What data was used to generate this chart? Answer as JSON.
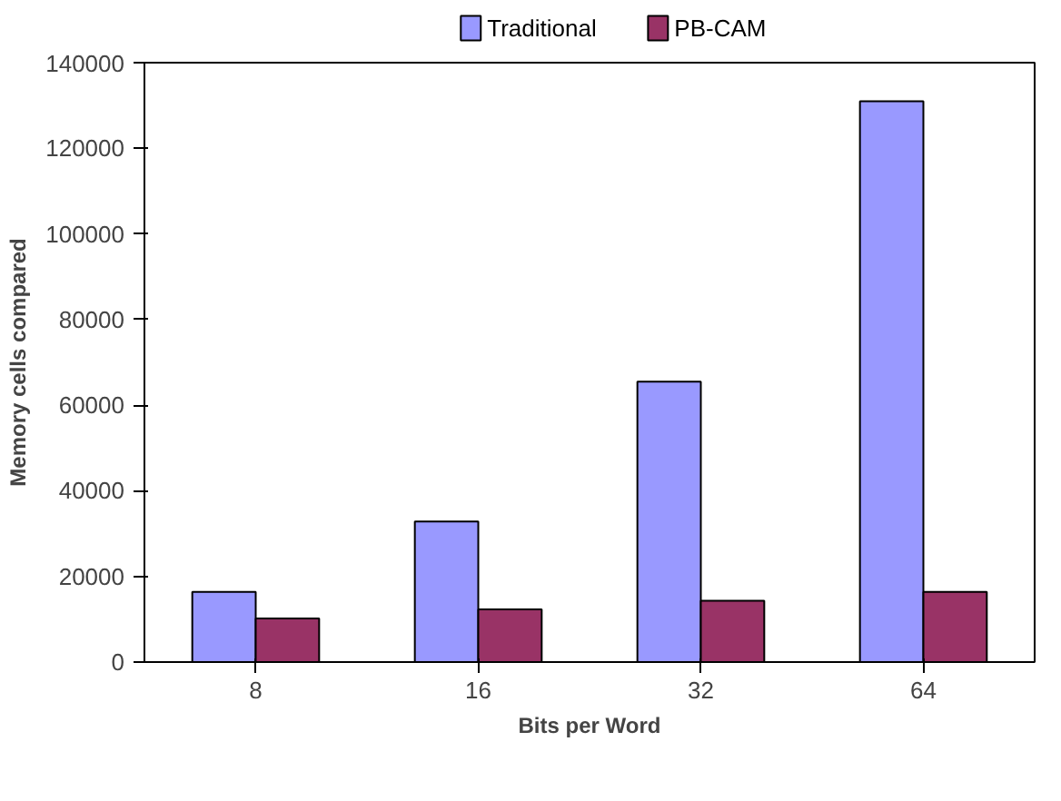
{
  "chart_data": {
    "type": "bar",
    "xlabel": "Bits per Word",
    "ylabel": "Memory cells compared",
    "categories": [
      "8",
      "16",
      "32",
      "64"
    ],
    "series": [
      {
        "name": "Traditional",
        "color": "#9999ff",
        "values": [
          16400,
          32800,
          65500,
          131000
        ]
      },
      {
        "name": "PB-CAM",
        "color": "#993366",
        "values": [
          10200,
          12300,
          14300,
          16400
        ]
      }
    ],
    "ylim": [
      0,
      140000
    ],
    "yticks": [
      0,
      20000,
      40000,
      60000,
      80000,
      100000,
      120000,
      140000
    ],
    "grid": false,
    "legend": "top"
  }
}
